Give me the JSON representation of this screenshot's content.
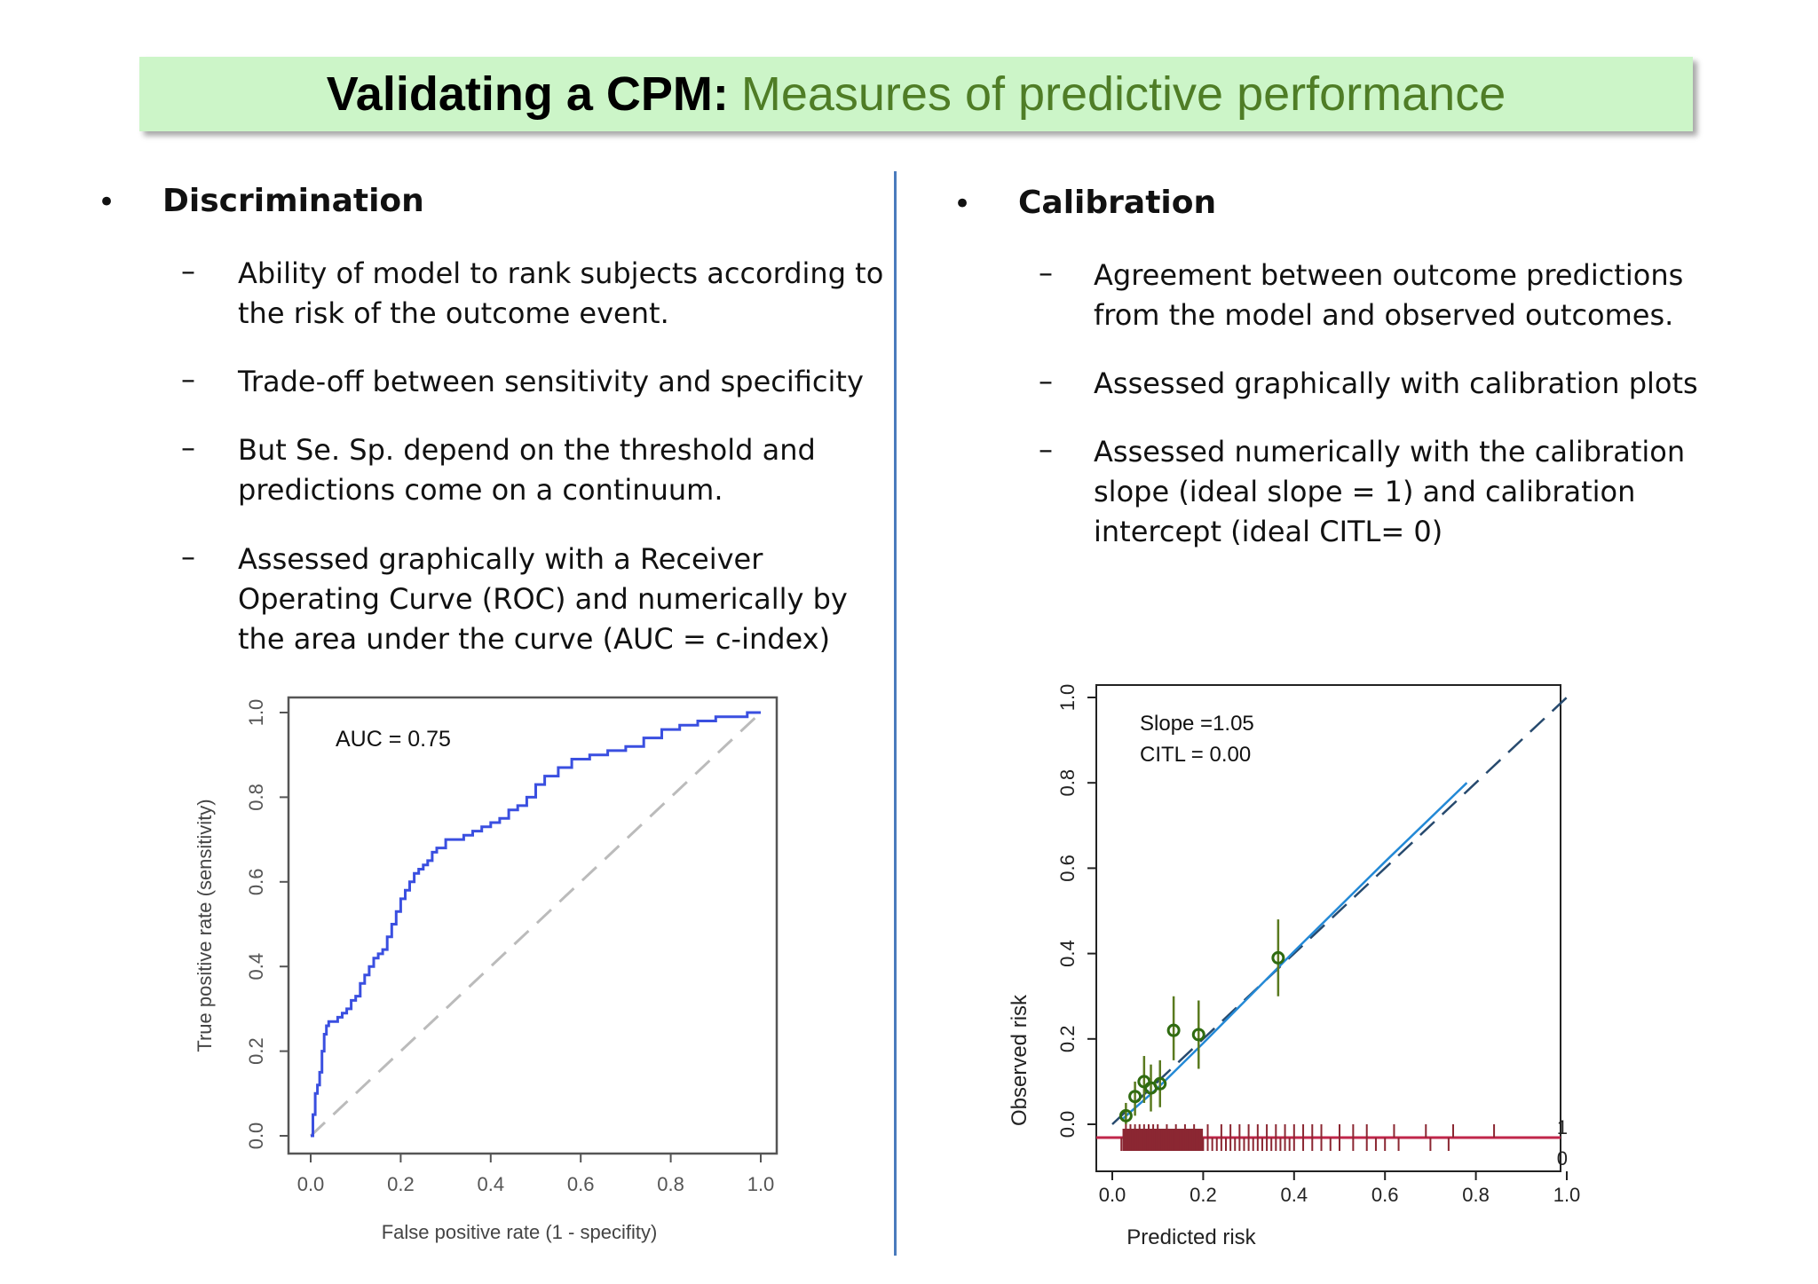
{
  "title": {
    "bold": "Validating a CPM:",
    "rest": "Measures of predictive performance"
  },
  "left": {
    "heading": "Discrimination",
    "points": [
      [
        "Ability of model to rank subjects according to",
        "the risk of the outcome event."
      ],
      [
        "Trade-off between sensitivity and specificity"
      ],
      [
        "But Se. Sp. depend on the threshold and",
        "predictions come on a continuum."
      ],
      [
        "Assessed graphically with a Receiver",
        "Operating Curve (ROC) and numerically by",
        "the area under the curve (AUC = c-index)"
      ]
    ]
  },
  "right": {
    "heading": "Calibration",
    "points": [
      [
        "Agreement between outcome predictions",
        "from the model and observed outcomes."
      ],
      [
        "Assessed graphically with calibration plots"
      ],
      [
        "Assessed numerically with the calibration",
        "slope (ideal slope = 1) and calibration",
        "intercept (ideal CITL= 0)"
      ]
    ]
  },
  "chart_data": [
    {
      "type": "line",
      "xlabel": "False positive rate (1 - specifity)",
      "ylabel": "True positive rate (sensitivity)",
      "xlim": [
        0,
        1
      ],
      "ylim": [
        0,
        1
      ],
      "xticks": [
        "0.0",
        "0.2",
        "0.4",
        "0.6",
        "0.8",
        "1.0"
      ],
      "yticks": [
        "0.0",
        "0.2",
        "0.4",
        "0.6",
        "0.8",
        "1.0"
      ],
      "annotation": "AUC = 0.75",
      "series": [
        {
          "color": "#3a4fe0",
          "style": "solid",
          "x": [
            0,
            0.005,
            0.01,
            0.015,
            0.02,
            0.025,
            0.03,
            0.035,
            0.04,
            0.05,
            0.06,
            0.07,
            0.08,
            0.09,
            0.1,
            0.11,
            0.12,
            0.13,
            0.14,
            0.15,
            0.16,
            0.17,
            0.18,
            0.19,
            0.2,
            0.21,
            0.22,
            0.23,
            0.24,
            0.25,
            0.26,
            0.27,
            0.28,
            0.3,
            0.32,
            0.34,
            0.36,
            0.38,
            0.4,
            0.42,
            0.44,
            0.46,
            0.48,
            0.5,
            0.52,
            0.55,
            0.58,
            0.62,
            0.66,
            0.7,
            0.74,
            0.78,
            0.82,
            0.86,
            0.9,
            0.94,
            0.97,
            1.0
          ],
          "y": [
            0,
            0.05,
            0.1,
            0.12,
            0.15,
            0.2,
            0.24,
            0.26,
            0.27,
            0.27,
            0.28,
            0.29,
            0.3,
            0.32,
            0.33,
            0.36,
            0.38,
            0.4,
            0.42,
            0.43,
            0.44,
            0.47,
            0.5,
            0.53,
            0.56,
            0.58,
            0.6,
            0.62,
            0.63,
            0.64,
            0.65,
            0.67,
            0.68,
            0.7,
            0.7,
            0.71,
            0.72,
            0.73,
            0.74,
            0.75,
            0.77,
            0.78,
            0.8,
            0.83,
            0.85,
            0.87,
            0.89,
            0.9,
            0.91,
            0.92,
            0.94,
            0.96,
            0.97,
            0.98,
            0.99,
            0.99,
            1.0,
            1.0
          ]
        },
        {
          "color": "#bbbbbb",
          "style": "dashed",
          "x": [
            0,
            1
          ],
          "y": [
            0,
            1
          ]
        }
      ]
    },
    {
      "type": "scatter",
      "xlabel": "Predicted risk",
      "ylabel": "Observed risk",
      "xlim": [
        0,
        1
      ],
      "ylim": [
        0,
        1
      ],
      "xticks": [
        "0.0",
        "0.2",
        "0.4",
        "0.6",
        "0.8",
        "1.0"
      ],
      "yticks": [
        "0.0",
        "0.2",
        "0.4",
        "0.6",
        "0.8",
        "1.0"
      ],
      "annotations": [
        "Slope =1.05",
        "CITL = 0.00"
      ],
      "rug_labels": [
        "1",
        "0"
      ],
      "points": {
        "x": [
          0.03,
          0.05,
          0.07,
          0.085,
          0.105,
          0.135,
          0.19,
          0.365
        ],
        "y": [
          0.02,
          0.065,
          0.1,
          0.085,
          0.095,
          0.22,
          0.21,
          0.39
        ],
        "lower": [
          0.0,
          0.02,
          0.05,
          0.03,
          0.04,
          0.15,
          0.13,
          0.3
        ],
        "upper": [
          0.05,
          0.1,
          0.16,
          0.14,
          0.15,
          0.3,
          0.29,
          0.48
        ],
        "color": "#2f6b10"
      },
      "lines": [
        {
          "name": "",
          "color": "#2389d6",
          "style": "solid",
          "x": [
            0.02,
            0.1,
            0.2,
            0.4,
            0.6,
            0.78
          ],
          "y": [
            0.01,
            0.085,
            0.19,
            0.405,
            0.615,
            0.8
          ]
        },
        {
          "name": "",
          "color": "#274a6e",
          "style": "dashed",
          "x": [
            0,
            1
          ],
          "y": [
            0,
            1
          ]
        }
      ],
      "rug": {
        "color": "#8b2732",
        "line_color": "#c0264a",
        "ticks_1": [
          0.03,
          0.04,
          0.05,
          0.06,
          0.07,
          0.08,
          0.09,
          0.1,
          0.12,
          0.14,
          0.16,
          0.18,
          0.21,
          0.24,
          0.26,
          0.28,
          0.3,
          0.32,
          0.34,
          0.36,
          0.38,
          0.4,
          0.42,
          0.44,
          0.46,
          0.5,
          0.53,
          0.56,
          0.62,
          0.69,
          0.75,
          0.84
        ],
        "ticks_0": [
          0.02,
          0.03,
          0.04,
          0.05,
          0.06,
          0.07,
          0.08,
          0.09,
          0.1,
          0.11,
          0.12,
          0.13,
          0.14,
          0.15,
          0.16,
          0.17,
          0.18,
          0.19,
          0.2,
          0.21,
          0.22,
          0.23,
          0.24,
          0.25,
          0.26,
          0.27,
          0.28,
          0.29,
          0.3,
          0.31,
          0.32,
          0.33,
          0.34,
          0.35,
          0.36,
          0.37,
          0.38,
          0.39,
          0.4,
          0.42,
          0.44,
          0.46,
          0.48,
          0.5,
          0.53,
          0.56,
          0.58,
          0.6,
          0.63,
          0.7,
          0.74
        ]
      }
    }
  ]
}
